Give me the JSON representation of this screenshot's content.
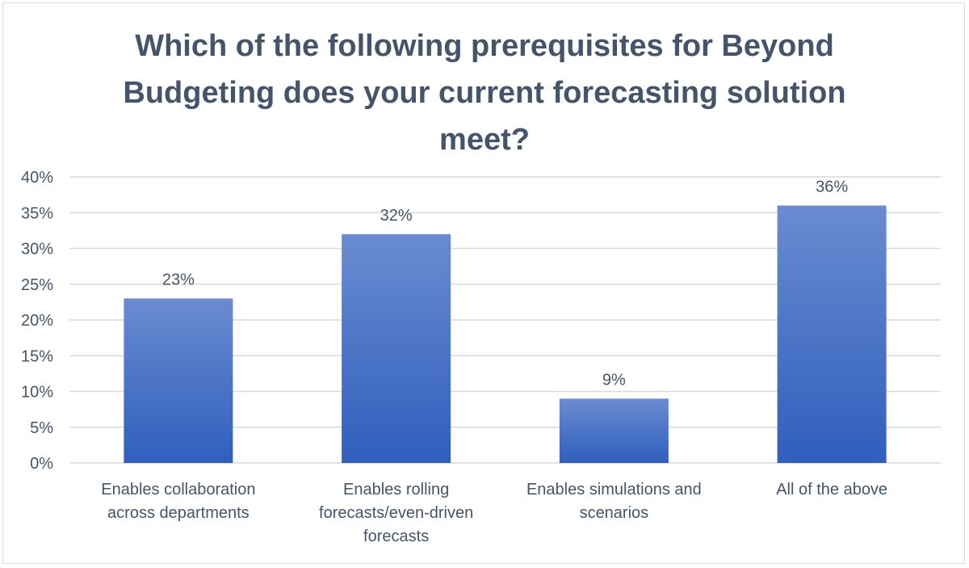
{
  "chart_data": {
    "type": "bar",
    "title": "Which of the following prerequisites for Beyond Budgeting does your current forecasting solution meet?",
    "categories": [
      [
        "Enables collaboration",
        "across departments"
      ],
      [
        "Enables rolling",
        "forecasts/even-driven",
        "forecasts"
      ],
      [
        "Enables simulations and",
        "scenarios"
      ],
      [
        "All of the above"
      ]
    ],
    "values": [
      23,
      32,
      9,
      36
    ],
    "data_labels": [
      "23%",
      "32%",
      "9%",
      "36%"
    ],
    "y_ticks": [
      "0%",
      "5%",
      "10%",
      "15%",
      "20%",
      "25%",
      "30%",
      "35%",
      "40%"
    ],
    "ylim": [
      0,
      40
    ],
    "grid": true,
    "legend": "none",
    "colors": {
      "bar_top": "#6a8bd0",
      "bar_bottom": "#2f5fbd",
      "grid": "#d9d9d9",
      "text": "#44546a"
    }
  }
}
